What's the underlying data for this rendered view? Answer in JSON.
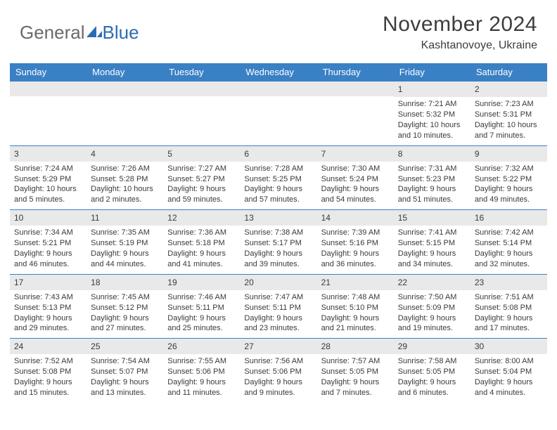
{
  "brand": {
    "general": "General",
    "blue": "Blue"
  },
  "title": {
    "month": "November 2024",
    "location": "Kashtanovoye, Ukraine"
  },
  "colors": {
    "header_bg": "#3a80c4",
    "header_text": "#ffffff",
    "daynum_bg": "#e9e9e9",
    "cell_border": "#3a80c4",
    "text": "#3a3a3a",
    "brand_gray": "#6a6a6a",
    "brand_blue": "#2a6db5"
  },
  "daynames": [
    "Sunday",
    "Monday",
    "Tuesday",
    "Wednesday",
    "Thursday",
    "Friday",
    "Saturday"
  ],
  "weeks": [
    [
      {
        "n": "",
        "empty": true
      },
      {
        "n": "",
        "empty": true
      },
      {
        "n": "",
        "empty": true
      },
      {
        "n": "",
        "empty": true
      },
      {
        "n": "",
        "empty": true
      },
      {
        "n": "1",
        "sr": "Sunrise: 7:21 AM",
        "ss": "Sunset: 5:32 PM",
        "dl1": "Daylight: 10 hours",
        "dl2": "and 10 minutes."
      },
      {
        "n": "2",
        "sr": "Sunrise: 7:23 AM",
        "ss": "Sunset: 5:31 PM",
        "dl1": "Daylight: 10 hours",
        "dl2": "and 7 minutes."
      }
    ],
    [
      {
        "n": "3",
        "sr": "Sunrise: 7:24 AM",
        "ss": "Sunset: 5:29 PM",
        "dl1": "Daylight: 10 hours",
        "dl2": "and 5 minutes."
      },
      {
        "n": "4",
        "sr": "Sunrise: 7:26 AM",
        "ss": "Sunset: 5:28 PM",
        "dl1": "Daylight: 10 hours",
        "dl2": "and 2 minutes."
      },
      {
        "n": "5",
        "sr": "Sunrise: 7:27 AM",
        "ss": "Sunset: 5:27 PM",
        "dl1": "Daylight: 9 hours",
        "dl2": "and 59 minutes."
      },
      {
        "n": "6",
        "sr": "Sunrise: 7:28 AM",
        "ss": "Sunset: 5:25 PM",
        "dl1": "Daylight: 9 hours",
        "dl2": "and 57 minutes."
      },
      {
        "n": "7",
        "sr": "Sunrise: 7:30 AM",
        "ss": "Sunset: 5:24 PM",
        "dl1": "Daylight: 9 hours",
        "dl2": "and 54 minutes."
      },
      {
        "n": "8",
        "sr": "Sunrise: 7:31 AM",
        "ss": "Sunset: 5:23 PM",
        "dl1": "Daylight: 9 hours",
        "dl2": "and 51 minutes."
      },
      {
        "n": "9",
        "sr": "Sunrise: 7:32 AM",
        "ss": "Sunset: 5:22 PM",
        "dl1": "Daylight: 9 hours",
        "dl2": "and 49 minutes."
      }
    ],
    [
      {
        "n": "10",
        "sr": "Sunrise: 7:34 AM",
        "ss": "Sunset: 5:21 PM",
        "dl1": "Daylight: 9 hours",
        "dl2": "and 46 minutes."
      },
      {
        "n": "11",
        "sr": "Sunrise: 7:35 AM",
        "ss": "Sunset: 5:19 PM",
        "dl1": "Daylight: 9 hours",
        "dl2": "and 44 minutes."
      },
      {
        "n": "12",
        "sr": "Sunrise: 7:36 AM",
        "ss": "Sunset: 5:18 PM",
        "dl1": "Daylight: 9 hours",
        "dl2": "and 41 minutes."
      },
      {
        "n": "13",
        "sr": "Sunrise: 7:38 AM",
        "ss": "Sunset: 5:17 PM",
        "dl1": "Daylight: 9 hours",
        "dl2": "and 39 minutes."
      },
      {
        "n": "14",
        "sr": "Sunrise: 7:39 AM",
        "ss": "Sunset: 5:16 PM",
        "dl1": "Daylight: 9 hours",
        "dl2": "and 36 minutes."
      },
      {
        "n": "15",
        "sr": "Sunrise: 7:41 AM",
        "ss": "Sunset: 5:15 PM",
        "dl1": "Daylight: 9 hours",
        "dl2": "and 34 minutes."
      },
      {
        "n": "16",
        "sr": "Sunrise: 7:42 AM",
        "ss": "Sunset: 5:14 PM",
        "dl1": "Daylight: 9 hours",
        "dl2": "and 32 minutes."
      }
    ],
    [
      {
        "n": "17",
        "sr": "Sunrise: 7:43 AM",
        "ss": "Sunset: 5:13 PM",
        "dl1": "Daylight: 9 hours",
        "dl2": "and 29 minutes."
      },
      {
        "n": "18",
        "sr": "Sunrise: 7:45 AM",
        "ss": "Sunset: 5:12 PM",
        "dl1": "Daylight: 9 hours",
        "dl2": "and 27 minutes."
      },
      {
        "n": "19",
        "sr": "Sunrise: 7:46 AM",
        "ss": "Sunset: 5:11 PM",
        "dl1": "Daylight: 9 hours",
        "dl2": "and 25 minutes."
      },
      {
        "n": "20",
        "sr": "Sunrise: 7:47 AM",
        "ss": "Sunset: 5:11 PM",
        "dl1": "Daylight: 9 hours",
        "dl2": "and 23 minutes."
      },
      {
        "n": "21",
        "sr": "Sunrise: 7:48 AM",
        "ss": "Sunset: 5:10 PM",
        "dl1": "Daylight: 9 hours",
        "dl2": "and 21 minutes."
      },
      {
        "n": "22",
        "sr": "Sunrise: 7:50 AM",
        "ss": "Sunset: 5:09 PM",
        "dl1": "Daylight: 9 hours",
        "dl2": "and 19 minutes."
      },
      {
        "n": "23",
        "sr": "Sunrise: 7:51 AM",
        "ss": "Sunset: 5:08 PM",
        "dl1": "Daylight: 9 hours",
        "dl2": "and 17 minutes."
      }
    ],
    [
      {
        "n": "24",
        "sr": "Sunrise: 7:52 AM",
        "ss": "Sunset: 5:08 PM",
        "dl1": "Daylight: 9 hours",
        "dl2": "and 15 minutes."
      },
      {
        "n": "25",
        "sr": "Sunrise: 7:54 AM",
        "ss": "Sunset: 5:07 PM",
        "dl1": "Daylight: 9 hours",
        "dl2": "and 13 minutes."
      },
      {
        "n": "26",
        "sr": "Sunrise: 7:55 AM",
        "ss": "Sunset: 5:06 PM",
        "dl1": "Daylight: 9 hours",
        "dl2": "and 11 minutes."
      },
      {
        "n": "27",
        "sr": "Sunrise: 7:56 AM",
        "ss": "Sunset: 5:06 PM",
        "dl1": "Daylight: 9 hours",
        "dl2": "and 9 minutes."
      },
      {
        "n": "28",
        "sr": "Sunrise: 7:57 AM",
        "ss": "Sunset: 5:05 PM",
        "dl1": "Daylight: 9 hours",
        "dl2": "and 7 minutes."
      },
      {
        "n": "29",
        "sr": "Sunrise: 7:58 AM",
        "ss": "Sunset: 5:05 PM",
        "dl1": "Daylight: 9 hours",
        "dl2": "and 6 minutes."
      },
      {
        "n": "30",
        "sr": "Sunrise: 8:00 AM",
        "ss": "Sunset: 5:04 PM",
        "dl1": "Daylight: 9 hours",
        "dl2": "and 4 minutes."
      }
    ]
  ]
}
